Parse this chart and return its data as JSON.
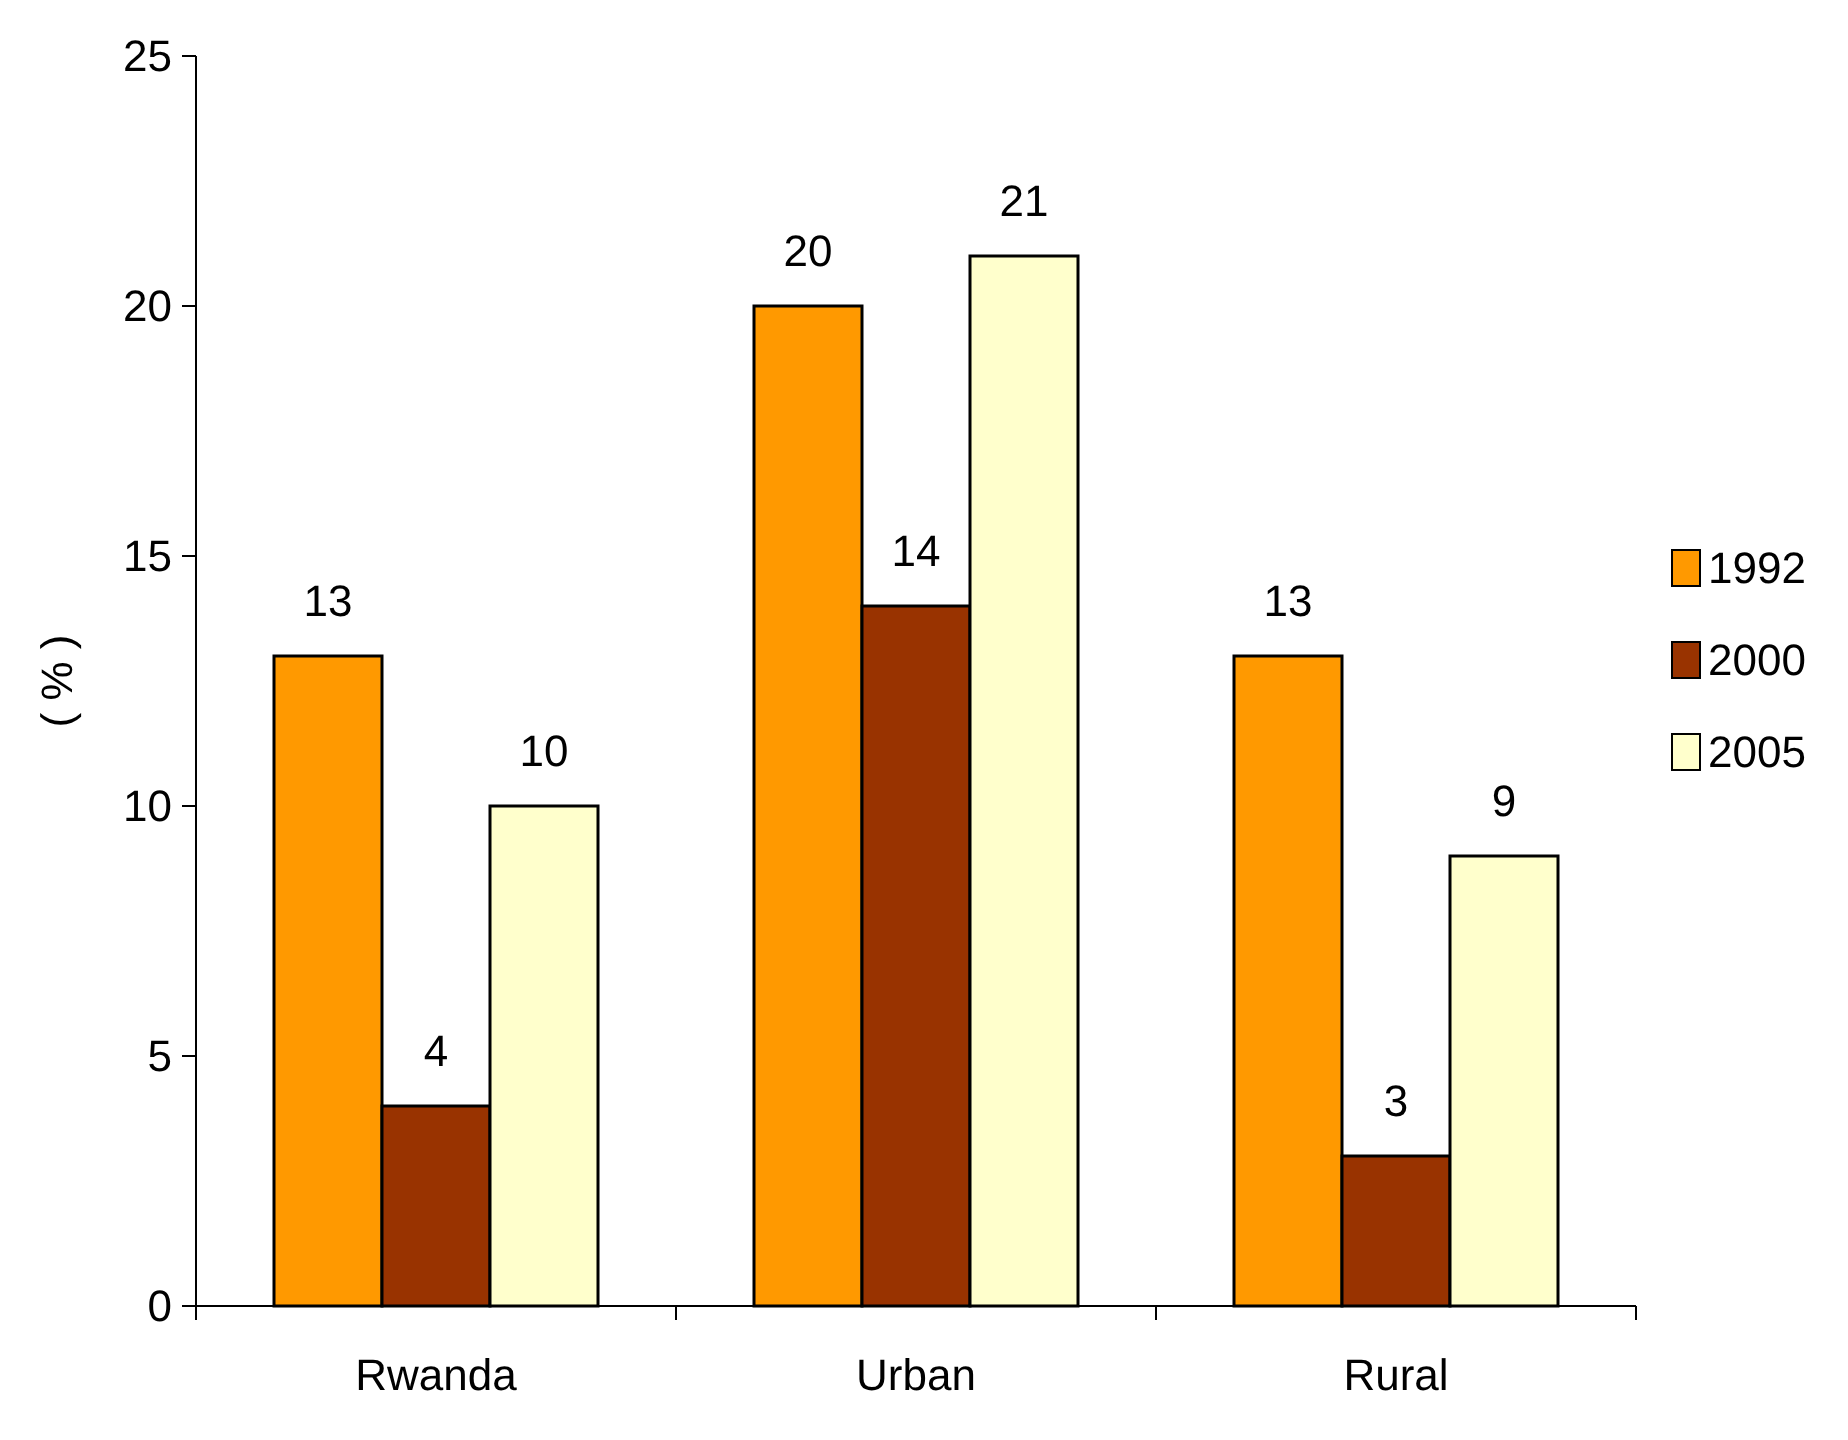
{
  "chart_data": {
    "type": "bar",
    "ylabel": "( % )",
    "categories": [
      "Rwanda",
      "Urban",
      "Rural"
    ],
    "series": [
      {
        "name": "1992",
        "color": "#ff9900",
        "values": [
          13,
          20,
          13
        ]
      },
      {
        "name": "2000",
        "color": "#993300",
        "values": [
          4,
          14,
          3
        ]
      },
      {
        "name": "2005",
        "color": "#ffffcc",
        "values": [
          10,
          21,
          9
        ]
      }
    ],
    "ylim": [
      0,
      25
    ],
    "yticks": [
      0,
      5,
      10,
      15,
      20,
      25
    ],
    "grid": false,
    "legend": "right",
    "data_labels": true
  }
}
